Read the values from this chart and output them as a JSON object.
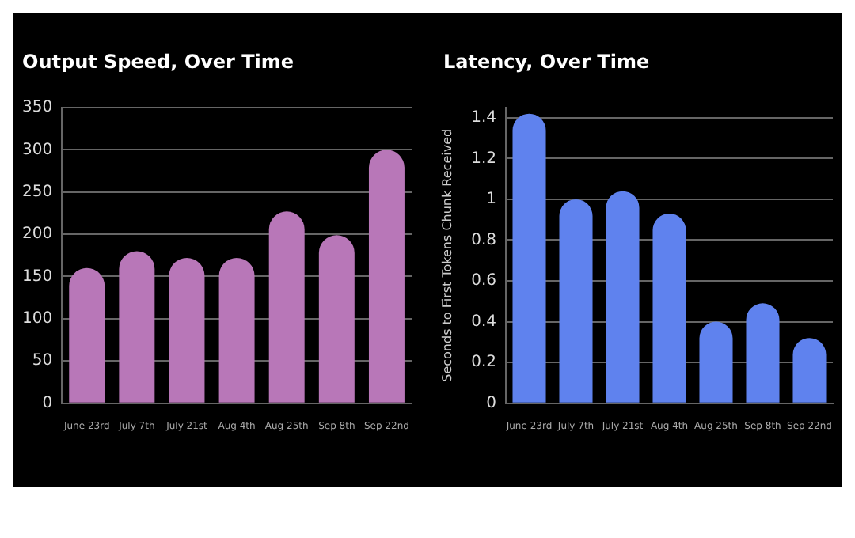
{
  "chart_data": [
    {
      "type": "bar",
      "title": "Output Speed, Over Time",
      "categories": [
        "June 23rd",
        "July 7th",
        "July 21st",
        "Aug 4th",
        "Aug 25th",
        "Sep 8th",
        "Sep 22nd"
      ],
      "values": [
        160,
        180,
        172,
        172,
        227,
        199,
        300
      ],
      "color": "#b877b8",
      "ylim": [
        0,
        350
      ],
      "yticks": [
        0,
        50,
        100,
        150,
        200,
        250,
        300,
        350
      ],
      "grid": "y"
    },
    {
      "type": "bar",
      "title": "Latency, Over Time",
      "ylabel": "Seconds to First Tokens Chunk Received",
      "categories": [
        "June 23rd",
        "July 7th",
        "July 21st",
        "Aug 4th",
        "Aug 25th",
        "Sep 8th",
        "Sep 22nd"
      ],
      "values": [
        1.42,
        1.0,
        1.04,
        0.93,
        0.4,
        0.49,
        0.32
      ],
      "color": "#5f82ee",
      "ylim": [
        0,
        1.45
      ],
      "yticks": [
        0,
        0.2,
        0.4,
        0.6,
        0.8,
        1,
        1.2,
        1.4
      ],
      "grid": "y"
    }
  ]
}
